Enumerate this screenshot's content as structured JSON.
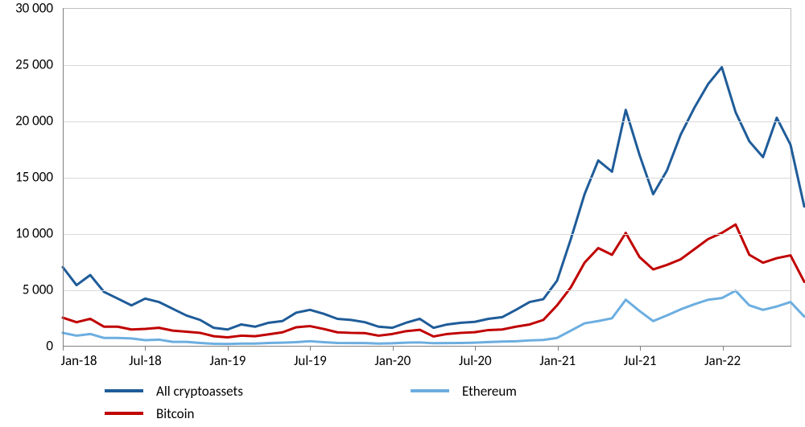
{
  "chart": {
    "type": "line",
    "background_color": "#ffffff",
    "grid_color": "#d9d9d9",
    "axis_color": "#808080",
    "border_color": "#bfbfbf",
    "tick_font_size": 17,
    "tick_color": "#000000",
    "line_width": 3,
    "y_axis": {
      "min": 0,
      "max": 30000,
      "step": 5000,
      "labels": [
        "0",
        "5 000",
        "10 000",
        "15 000",
        "20 000",
        "25 000",
        "30 000"
      ]
    },
    "x_axis": {
      "min": 0,
      "max": 53,
      "tick_positions": [
        0,
        6,
        12,
        18,
        24,
        30,
        36,
        42,
        48
      ],
      "tick_labels": [
        "Jan-18",
        "Jul-18",
        "Jan-19",
        "Jul-19",
        "Jan-20",
        "Jul-20",
        "Jan-21",
        "Jul-21",
        "Jan-22"
      ]
    },
    "series": [
      {
        "name": "All cryptoassets",
        "color": "#1f5c99",
        "values": [
          7000,
          5400,
          6300,
          4800,
          4200,
          3600,
          4200,
          3900,
          3300,
          2700,
          2300,
          1600,
          1450,
          1900,
          1700,
          2050,
          2200,
          2950,
          3200,
          2850,
          2400,
          2300,
          2100,
          1700,
          1600,
          2050,
          2400,
          1600,
          1900,
          2050,
          2130,
          2400,
          2550,
          3200,
          3900,
          4150,
          5800,
          9500,
          13500,
          16500,
          15500,
          21000,
          17000,
          13500,
          15600,
          18800,
          21200,
          23300,
          24800,
          20800,
          18200,
          16800,
          20300,
          17900,
          12400
        ]
      },
      {
        "name": "Bitcoin",
        "color": "#c00000",
        "values": [
          2500,
          2100,
          2400,
          1700,
          1700,
          1450,
          1500,
          1600,
          1350,
          1250,
          1150,
          850,
          750,
          900,
          850,
          1020,
          1200,
          1650,
          1750,
          1500,
          1200,
          1150,
          1130,
          900,
          1050,
          1300,
          1420,
          830,
          1050,
          1150,
          1210,
          1400,
          1450,
          1700,
          1900,
          2300,
          3600,
          5200,
          7400,
          8700,
          8100,
          10050,
          7900,
          6800,
          7200,
          7700,
          8600,
          9500,
          10050,
          10800,
          8100,
          7400,
          7800,
          8050,
          5700
        ]
      },
      {
        "name": "Ethereum",
        "color": "#6caee0",
        "values": [
          1150,
          900,
          1050,
          700,
          700,
          650,
          500,
          550,
          350,
          350,
          250,
          180,
          160,
          200,
          200,
          250,
          280,
          320,
          410,
          320,
          250,
          240,
          240,
          200,
          220,
          280,
          300,
          230,
          240,
          250,
          280,
          330,
          380,
          400,
          480,
          520,
          700,
          1350,
          2000,
          2200,
          2450,
          4100,
          3100,
          2200,
          2700,
          3240,
          3700,
          4100,
          4250,
          4900,
          3600,
          3200,
          3500,
          3900,
          2600
        ]
      }
    ],
    "legend": {
      "order": [
        0,
        2,
        1
      ],
      "items": [
        "All cryptoassets",
        "Ethereum",
        "Bitcoin"
      ]
    }
  }
}
